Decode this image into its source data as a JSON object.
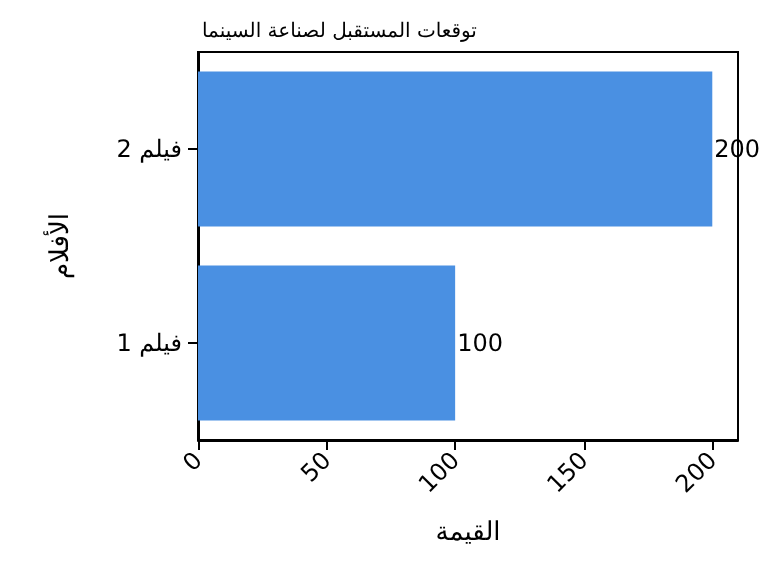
{
  "chart_data": {
    "type": "bar",
    "orientation": "horizontal",
    "title": "توقعات المستقبل لصناعة السينما",
    "xlabel": "القيمة",
    "ylabel": "الأفلام",
    "categories": [
      "فيلم 2",
      "فيلم 1"
    ],
    "values": [
      200,
      100
    ],
    "color": "#4a90e2",
    "xlim": [
      0,
      210
    ],
    "xticks": [
      0,
      50,
      100,
      150,
      200
    ],
    "grid": false,
    "data_labels": true
  }
}
